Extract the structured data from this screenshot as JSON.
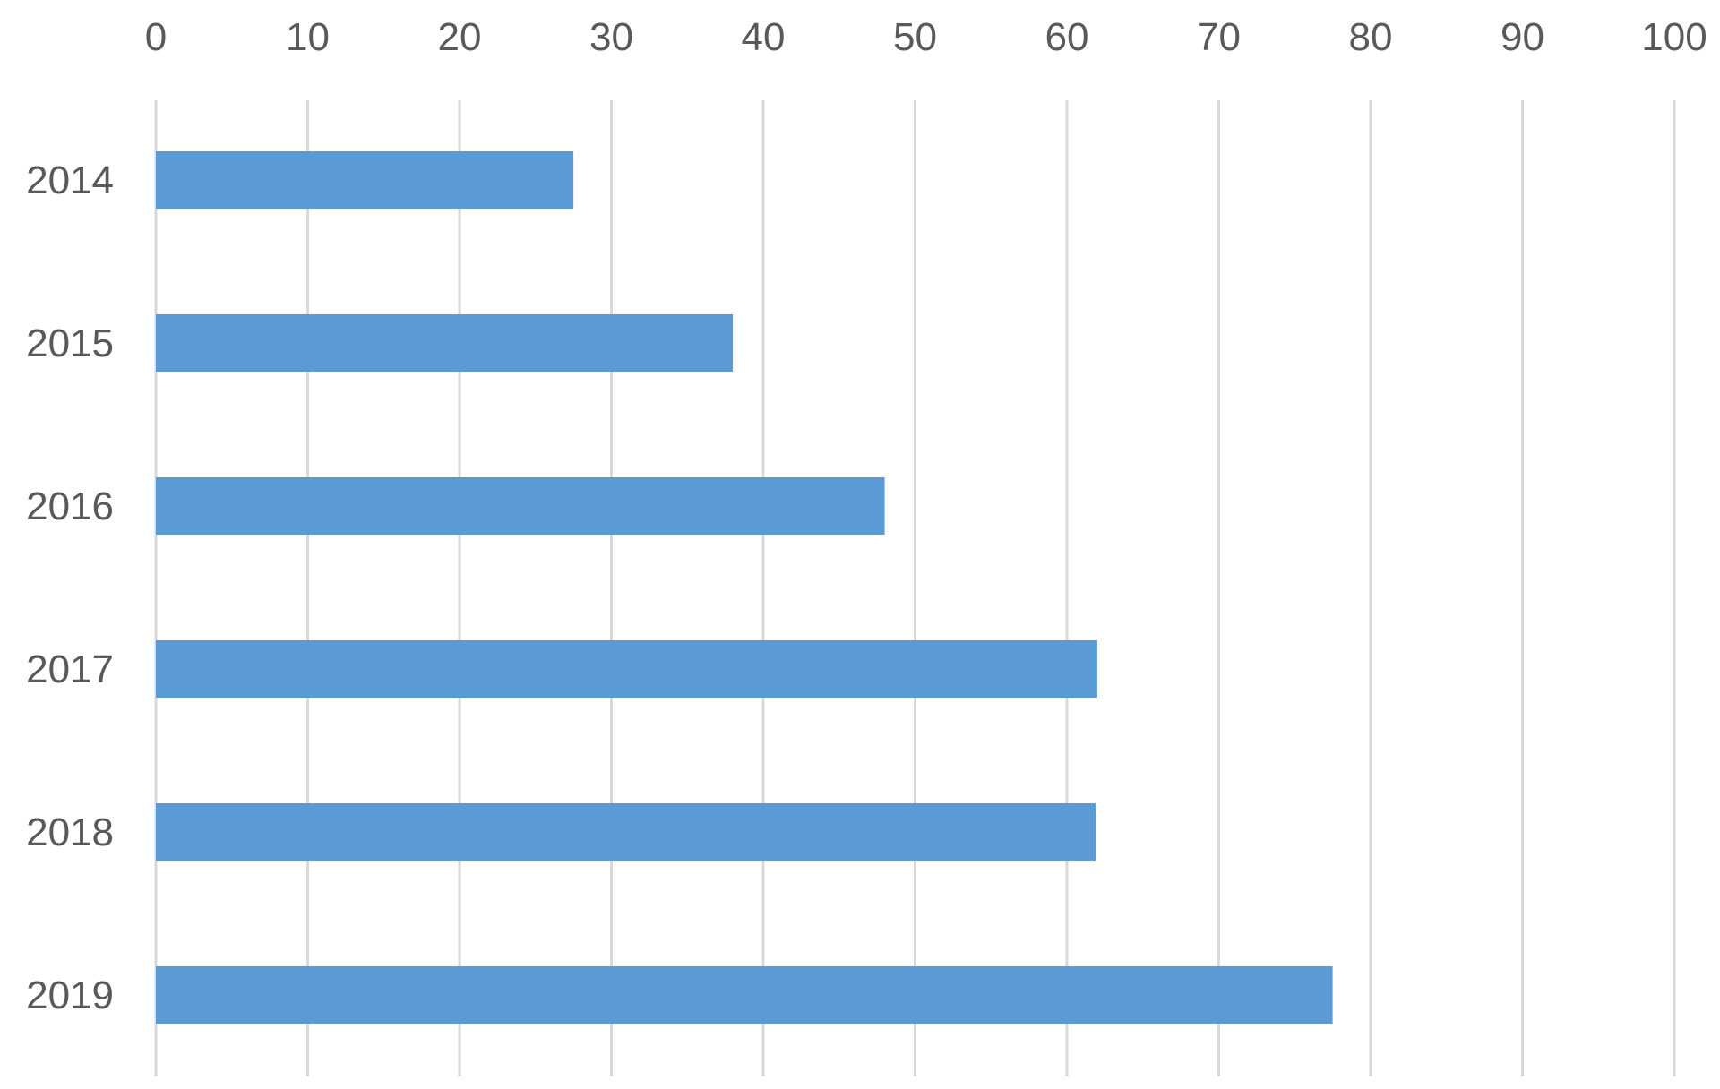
{
  "chart_data": {
    "type": "bar",
    "orientation": "horizontal",
    "categories": [
      "2014",
      "2015",
      "2016",
      "2017",
      "2018",
      "2019"
    ],
    "values": [
      27.5,
      38,
      48,
      62,
      61.9,
      77.5
    ],
    "x_ticks": [
      "0",
      "10",
      "20",
      "30",
      "40",
      "50",
      "60",
      "70",
      "80",
      "90",
      "100"
    ],
    "xlim": [
      0,
      100
    ],
    "x_axis_position": "top",
    "grid": true,
    "legend": "none",
    "title": "",
    "xlabel": "",
    "ylabel": ""
  },
  "colors": {
    "bar": "#5b9bd5",
    "grid": "#d9d9d9",
    "text": "#595959",
    "background": "#ffffff"
  }
}
